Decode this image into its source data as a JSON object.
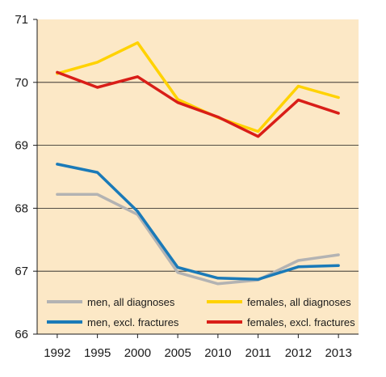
{
  "chart_data": {
    "type": "line",
    "title": "",
    "xlabel": "",
    "ylabel": "",
    "categories": [
      "1992",
      "1995",
      "2000",
      "2005",
      "2010",
      "2011",
      "2012",
      "2013"
    ],
    "ylim": [
      66,
      71
    ],
    "yticks": [
      "66",
      "67",
      "68",
      "69",
      "70",
      "71"
    ],
    "grid": "horizontal",
    "legend_placement": "bottom-inside",
    "plot_background": "#fce8c6",
    "series": [
      {
        "name": "men, all diagnoses",
        "color": "#b3b3b3",
        "values": [
          68.22,
          68.22,
          67.9,
          66.98,
          66.8,
          66.86,
          67.17,
          67.26
        ]
      },
      {
        "name": "females, all diagnoses",
        "color": "#ffd200",
        "values": [
          70.14,
          70.32,
          70.63,
          69.73,
          69.44,
          69.22,
          69.94,
          69.76
        ]
      },
      {
        "name": "men, excl. fractures",
        "color": "#1a7ab8",
        "values": [
          68.7,
          68.57,
          67.95,
          67.06,
          66.89,
          66.87,
          67.07,
          67.09
        ]
      },
      {
        "name": "females, excl. fractures",
        "color": "#d91e18",
        "values": [
          70.16,
          69.92,
          70.09,
          69.68,
          69.45,
          69.14,
          69.72,
          69.51
        ]
      }
    ]
  }
}
